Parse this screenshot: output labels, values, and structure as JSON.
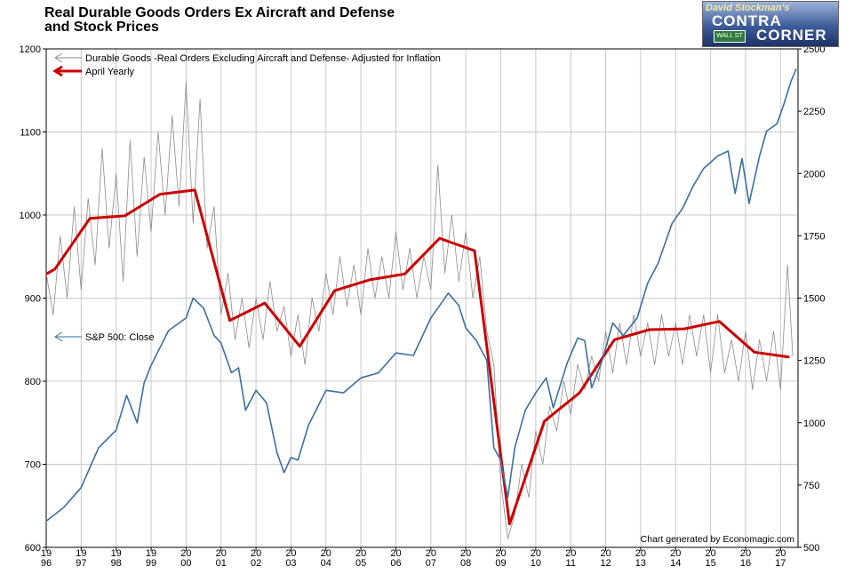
{
  "header": {
    "title_line1": "Real Durable Goods Orders Ex Aircraft and Defense",
    "title_line2": "and Stock Prices"
  },
  "logo": {
    "line1": "David Stockman's",
    "line2": "CONTRA",
    "line3": "CORNER",
    "sign": "WALL ST"
  },
  "credit": "Chart generated by Economagic.com",
  "colors": {
    "durable": "#8c8c8c",
    "april": "#cc0000",
    "sp500": "#3a6fa3",
    "grid": "#c8c8c8"
  },
  "chart_data": {
    "type": "line",
    "x_tick_labels": [
      "1996",
      "1997",
      "1998",
      "1999",
      "2000",
      "2001",
      "2002",
      "2003",
      "2004",
      "2005",
      "2006",
      "2007",
      "2008",
      "2009",
      "2010",
      "2011",
      "2012",
      "2013",
      "2014",
      "2015",
      "2016",
      "2017"
    ],
    "x_range": [
      1996.0,
      2017.5
    ],
    "left_axis": {
      "range": [
        600,
        1200
      ],
      "ticks": [
        600,
        700,
        800,
        900,
        1000,
        1100,
        1200
      ]
    },
    "right_axis": {
      "range": [
        500,
        2500
      ],
      "ticks": [
        500,
        750,
        1000,
        1250,
        1500,
        1750,
        2000,
        2250,
        2500
      ]
    },
    "grid": true,
    "series": [
      {
        "name": "Durable Goods -Real Orders Excluding Aircraft and Defense- Adjusted for Inflation",
        "axis": "left",
        "style": "thin",
        "points": [
          [
            1996.0,
            930
          ],
          [
            1996.2,
            880
          ],
          [
            1996.4,
            975
          ],
          [
            1996.6,
            900
          ],
          [
            1996.8,
            1010
          ],
          [
            1997.0,
            910
          ],
          [
            1997.2,
            1020
          ],
          [
            1997.4,
            940
          ],
          [
            1997.6,
            1080
          ],
          [
            1997.8,
            960
          ],
          [
            1998.0,
            1050
          ],
          [
            1998.2,
            920
          ],
          [
            1998.4,
            1090
          ],
          [
            1998.6,
            950
          ],
          [
            1998.8,
            1070
          ],
          [
            1999.0,
            980
          ],
          [
            1999.2,
            1100
          ],
          [
            1999.4,
            1000
          ],
          [
            1999.6,
            1120
          ],
          [
            1999.8,
            1010
          ],
          [
            2000.0,
            1160
          ],
          [
            2000.2,
            990
          ],
          [
            2000.4,
            1140
          ],
          [
            2000.6,
            960
          ],
          [
            2000.8,
            1010
          ],
          [
            2001.0,
            880
          ],
          [
            2001.2,
            930
          ],
          [
            2001.4,
            850
          ],
          [
            2001.6,
            900
          ],
          [
            2001.8,
            840
          ],
          [
            2002.0,
            900
          ],
          [
            2002.2,
            850
          ],
          [
            2002.4,
            920
          ],
          [
            2002.6,
            860
          ],
          [
            2002.8,
            890
          ],
          [
            2003.0,
            830
          ],
          [
            2003.2,
            880
          ],
          [
            2003.4,
            820
          ],
          [
            2003.6,
            900
          ],
          [
            2003.8,
            860
          ],
          [
            2004.0,
            930
          ],
          [
            2004.2,
            880
          ],
          [
            2004.4,
            950
          ],
          [
            2004.6,
            890
          ],
          [
            2004.8,
            940
          ],
          [
            2005.0,
            880
          ],
          [
            2005.2,
            960
          ],
          [
            2005.4,
            900
          ],
          [
            2005.6,
            950
          ],
          [
            2005.8,
            900
          ],
          [
            2006.0,
            980
          ],
          [
            2006.2,
            910
          ],
          [
            2006.4,
            960
          ],
          [
            2006.6,
            900
          ],
          [
            2006.8,
            950
          ],
          [
            2007.0,
            910
          ],
          [
            2007.2,
            1060
          ],
          [
            2007.4,
            930
          ],
          [
            2007.6,
            1000
          ],
          [
            2007.8,
            920
          ],
          [
            2008.0,
            980
          ],
          [
            2008.2,
            900
          ],
          [
            2008.4,
            950
          ],
          [
            2008.6,
            860
          ],
          [
            2008.8,
            820
          ],
          [
            2009.0,
            680
          ],
          [
            2009.2,
            610
          ],
          [
            2009.4,
            640
          ],
          [
            2009.6,
            700
          ],
          [
            2009.8,
            660
          ],
          [
            2010.0,
            740
          ],
          [
            2010.2,
            700
          ],
          [
            2010.4,
            770
          ],
          [
            2010.6,
            740
          ],
          [
            2010.8,
            800
          ],
          [
            2011.0,
            760
          ],
          [
            2011.2,
            820
          ],
          [
            2011.4,
            790
          ],
          [
            2011.6,
            830
          ],
          [
            2011.8,
            800
          ],
          [
            2012.0,
            860
          ],
          [
            2012.2,
            810
          ],
          [
            2012.4,
            870
          ],
          [
            2012.6,
            820
          ],
          [
            2012.8,
            880
          ],
          [
            2013.0,
            830
          ],
          [
            2013.2,
            870
          ],
          [
            2013.4,
            820
          ],
          [
            2013.6,
            880
          ],
          [
            2013.8,
            830
          ],
          [
            2014.0,
            870
          ],
          [
            2014.2,
            820
          ],
          [
            2014.4,
            880
          ],
          [
            2014.6,
            830
          ],
          [
            2014.8,
            880
          ],
          [
            2015.0,
            810
          ],
          [
            2015.2,
            880
          ],
          [
            2015.4,
            810
          ],
          [
            2015.6,
            850
          ],
          [
            2015.8,
            800
          ],
          [
            2016.0,
            860
          ],
          [
            2016.2,
            790
          ],
          [
            2016.4,
            850
          ],
          [
            2016.6,
            800
          ],
          [
            2016.8,
            860
          ],
          [
            2017.0,
            790
          ],
          [
            2017.2,
            940
          ],
          [
            2017.35,
            830
          ]
        ]
      },
      {
        "name": "April Yearly",
        "axis": "left",
        "style": "thick",
        "points": [
          [
            1996.0,
            929
          ],
          [
            1996.25,
            935
          ],
          [
            1997.25,
            996
          ],
          [
            1998.25,
            999
          ],
          [
            1999.25,
            1025
          ],
          [
            2000.25,
            1030
          ],
          [
            2001.25,
            873
          ],
          [
            2002.25,
            894
          ],
          [
            2003.25,
            842
          ],
          [
            2004.25,
            909
          ],
          [
            2005.25,
            922
          ],
          [
            2006.25,
            929
          ],
          [
            2007.25,
            972
          ],
          [
            2008.25,
            957
          ],
          [
            2009.25,
            628
          ],
          [
            2010.25,
            752
          ],
          [
            2011.25,
            786
          ],
          [
            2012.25,
            850
          ],
          [
            2013.25,
            862
          ],
          [
            2014.25,
            863
          ],
          [
            2015.25,
            872
          ],
          [
            2016.25,
            835
          ],
          [
            2017.25,
            829
          ]
        ]
      },
      {
        "name": "S&P 500: Close",
        "axis": "right",
        "style": "thin",
        "points": [
          [
            1996.0,
            605
          ],
          [
            1996.5,
            660
          ],
          [
            1997.0,
            740
          ],
          [
            1997.5,
            900
          ],
          [
            1998.0,
            970
          ],
          [
            1998.3,
            1110
          ],
          [
            1998.6,
            1000
          ],
          [
            1998.8,
            1160
          ],
          [
            1999.0,
            1230
          ],
          [
            1999.5,
            1370
          ],
          [
            2000.0,
            1420
          ],
          [
            2000.2,
            1500
          ],
          [
            2000.5,
            1460
          ],
          [
            2000.8,
            1350
          ],
          [
            2001.0,
            1320
          ],
          [
            2001.3,
            1200
          ],
          [
            2001.5,
            1220
          ],
          [
            2001.7,
            1050
          ],
          [
            2002.0,
            1130
          ],
          [
            2002.3,
            1080
          ],
          [
            2002.6,
            880
          ],
          [
            2002.8,
            800
          ],
          [
            2003.0,
            860
          ],
          [
            2003.2,
            850
          ],
          [
            2003.5,
            990
          ],
          [
            2004.0,
            1130
          ],
          [
            2004.5,
            1120
          ],
          [
            2005.0,
            1180
          ],
          [
            2005.5,
            1200
          ],
          [
            2006.0,
            1280
          ],
          [
            2006.5,
            1270
          ],
          [
            2007.0,
            1420
          ],
          [
            2007.5,
            1520
          ],
          [
            2007.8,
            1470
          ],
          [
            2008.0,
            1380
          ],
          [
            2008.3,
            1330
          ],
          [
            2008.6,
            1250
          ],
          [
            2008.8,
            900
          ],
          [
            2009.0,
            850
          ],
          [
            2009.2,
            700
          ],
          [
            2009.4,
            900
          ],
          [
            2009.7,
            1050
          ],
          [
            2010.0,
            1120
          ],
          [
            2010.3,
            1180
          ],
          [
            2010.5,
            1060
          ],
          [
            2010.9,
            1240
          ],
          [
            2011.2,
            1340
          ],
          [
            2011.4,
            1330
          ],
          [
            2011.6,
            1140
          ],
          [
            2011.9,
            1250
          ],
          [
            2012.2,
            1400
          ],
          [
            2012.5,
            1350
          ],
          [
            2012.9,
            1420
          ],
          [
            2013.2,
            1560
          ],
          [
            2013.5,
            1640
          ],
          [
            2013.9,
            1800
          ],
          [
            2014.2,
            1860
          ],
          [
            2014.5,
            1950
          ],
          [
            2014.8,
            2020
          ],
          [
            2015.2,
            2070
          ],
          [
            2015.5,
            2090
          ],
          [
            2015.7,
            1920
          ],
          [
            2015.9,
            2060
          ],
          [
            2016.1,
            1880
          ],
          [
            2016.4,
            2070
          ],
          [
            2016.6,
            2170
          ],
          [
            2016.9,
            2200
          ],
          [
            2017.1,
            2280
          ],
          [
            2017.3,
            2370
          ],
          [
            2017.45,
            2420
          ]
        ]
      }
    ],
    "legend": {
      "placement": "top-left"
    }
  }
}
